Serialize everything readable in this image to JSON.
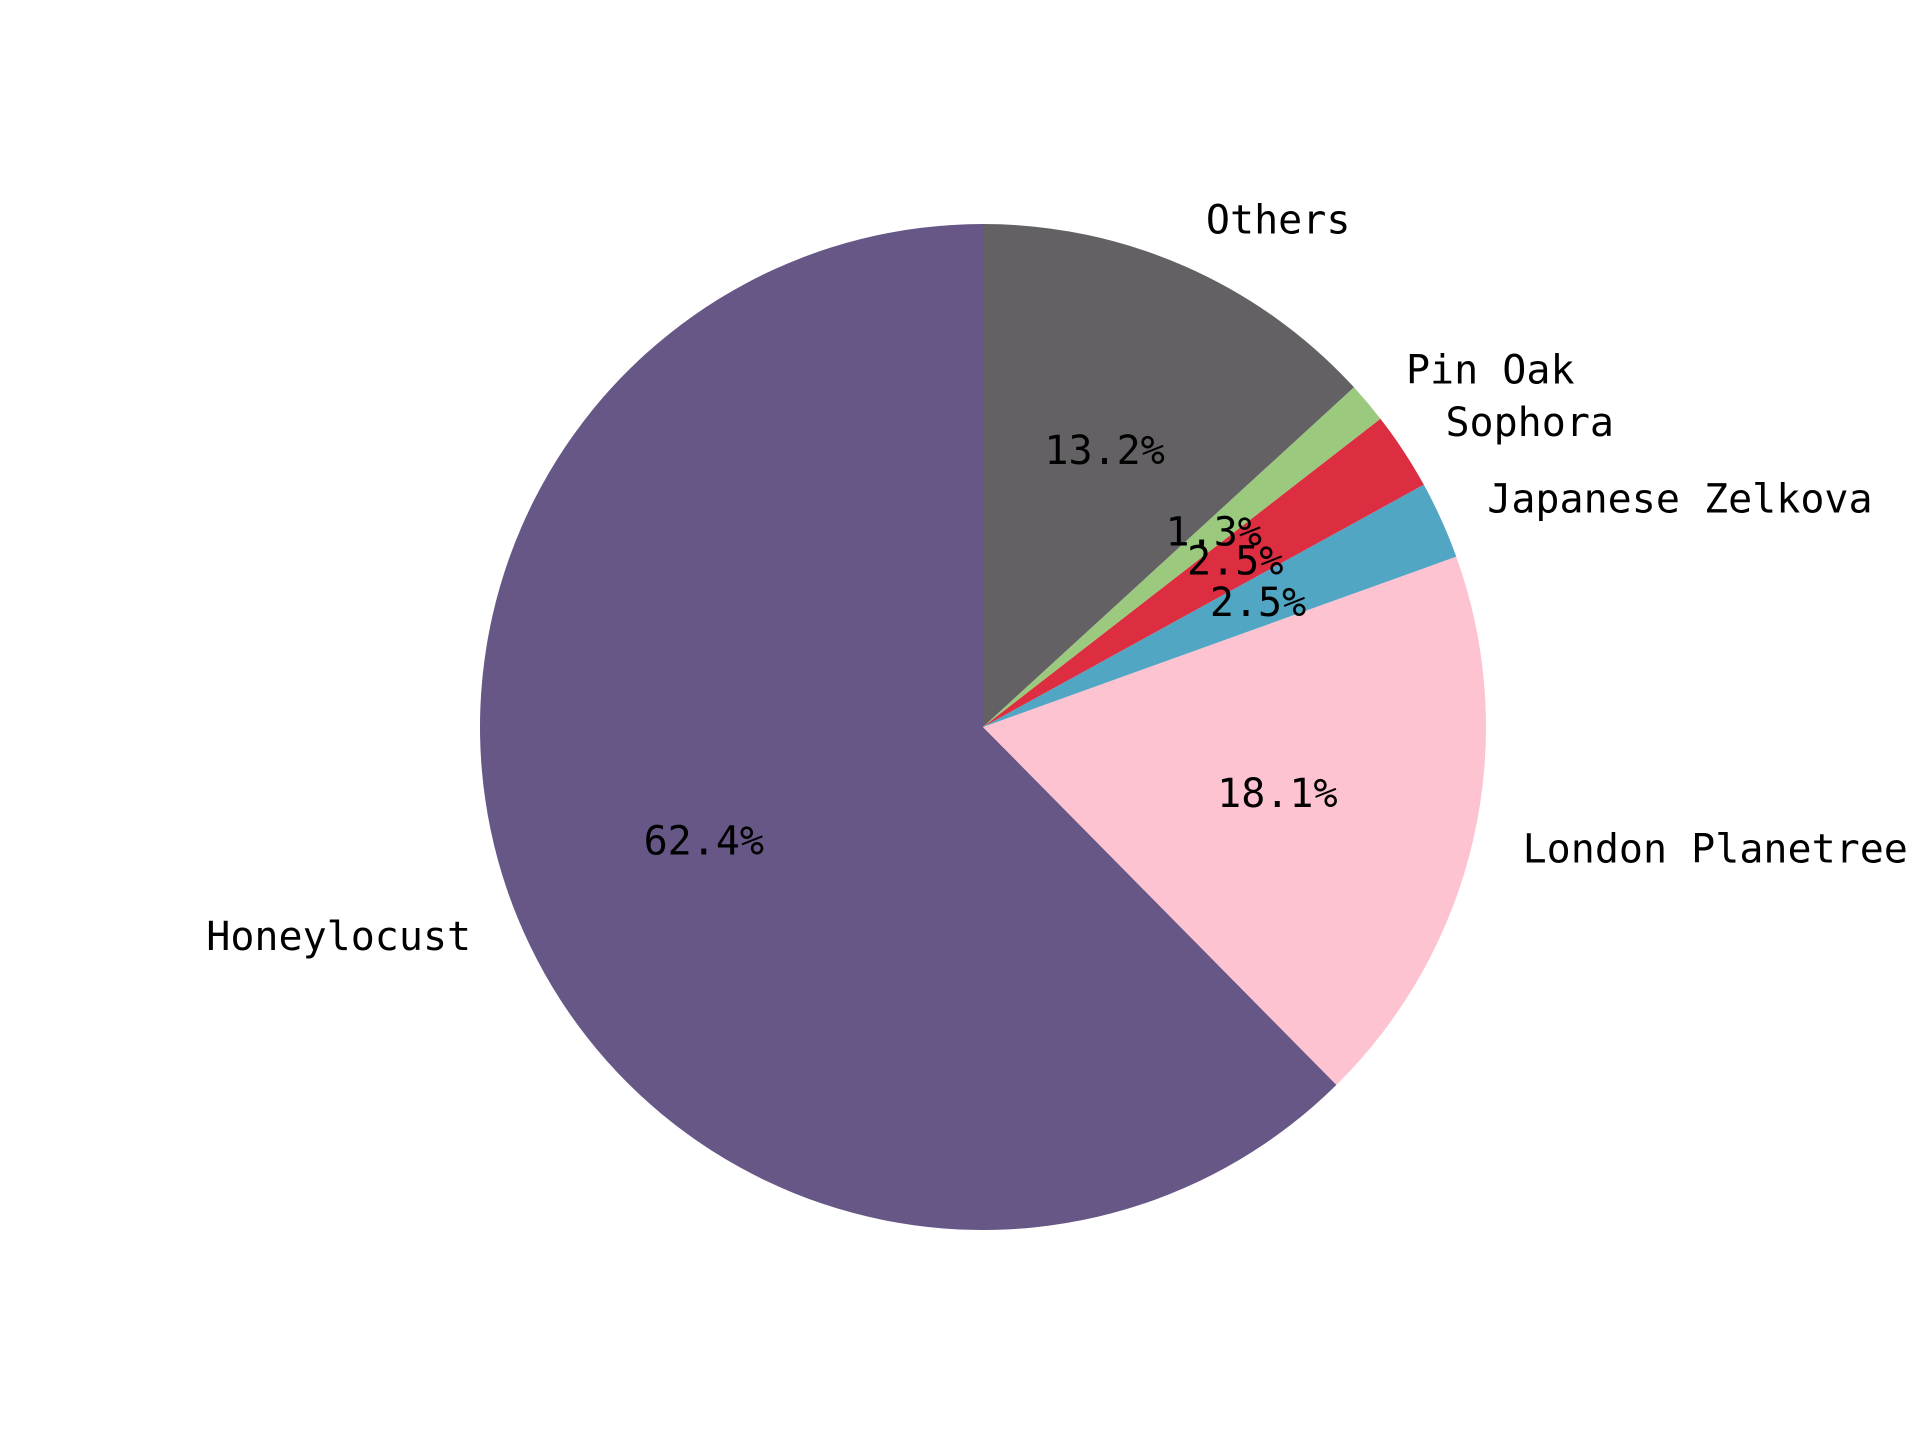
{
  "chart_data": {
    "type": "pie",
    "start_angle_deg": 90,
    "direction": "counterclockwise",
    "legend": "none",
    "slices": [
      {
        "label": "Honeylocust",
        "value": 62.4,
        "pct_text": "62.4%",
        "color": "#665787"
      },
      {
        "label": "London Planetree",
        "value": 18.1,
        "pct_text": "18.1%",
        "color": "#fdc3d1"
      },
      {
        "label": "Japanese Zelkova",
        "value": 2.5,
        "pct_text": "2.5%",
        "color": "#51a6c3"
      },
      {
        "label": "Sophora",
        "value": 2.5,
        "pct_text": "2.5%",
        "color": "#dc2e40"
      },
      {
        "label": "Pin Oak",
        "value": 1.3,
        "pct_text": "1.3%",
        "color": "#9bca7e"
      },
      {
        "label": "Others",
        "value": 13.2,
        "pct_text": "13.2%",
        "color": "#636164"
      }
    ]
  }
}
